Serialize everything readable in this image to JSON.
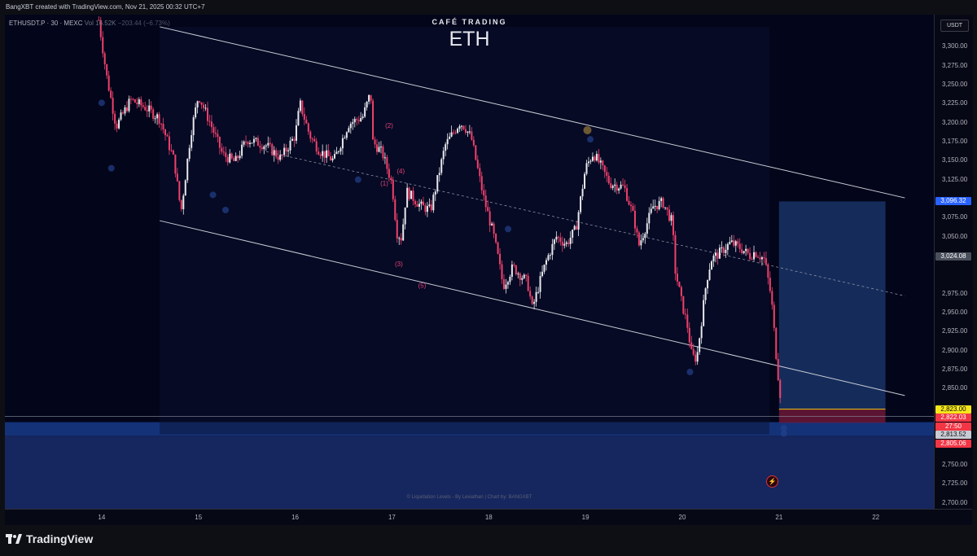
{
  "header": {
    "credit": "BangXBT created with TradingView.com, Nov 21, 2025 00:32 UTC+7"
  },
  "legend": {
    "symbol": "ETHUSDT.P · 30 · MEXC",
    "volume_label": "Vol",
    "volume_value": "16.52K",
    "change": "−203.44 (−6.73%)"
  },
  "brand": {
    "subtitle": "CAFÉ TRADING",
    "title": "ETH"
  },
  "watermark": "© Liquidation Levels - By Leviathan | Chart by: BANGXBT",
  "price_axis": {
    "unit": "USDT",
    "ticks": [
      "3,300.00",
      "3,275.00",
      "3,250.00",
      "3,225.00",
      "3,200.00",
      "3,175.00",
      "3,150.00",
      "3,125.00",
      "3,075.00",
      "3,050.00",
      "2,975.00",
      "2,950.00",
      "2,925.00",
      "2,900.00",
      "2,875.00",
      "2,850.00",
      "2,775.00",
      "2,750.00",
      "2,725.00",
      "2,700.00"
    ]
  },
  "tags": [
    {
      "text": "3,096.32",
      "color": "#2962ff",
      "price": 3096.32
    },
    {
      "text": "3,024.08",
      "color": "#4a4f5c",
      "price": 3024.08
    },
    {
      "text": "2,823.00",
      "color": "#f5e61a",
      "price": 2823.0,
      "dark": true
    },
    {
      "text": "2,822.03",
      "color": "#f23645",
      "price": 2822.03
    },
    {
      "text": "27:50",
      "color": "#f23645",
      "price": 2813.5
    },
    {
      "text": "2,813.52",
      "color": "#c8cbd4",
      "price": 2813.52,
      "dark": true
    },
    {
      "text": "2,805.06",
      "color": "#f23645",
      "price": 2805.06
    }
  ],
  "time_axis": [
    "14",
    "15",
    "16",
    "17",
    "18",
    "19",
    "20",
    "21",
    "22"
  ],
  "footer": {
    "logo_text": "TradingView"
  },
  "icons": {
    "flash": "lightning-icon"
  },
  "chart_data": {
    "type": "candlestick",
    "symbol": "ETHUSDT.P",
    "interval": "30",
    "exchange": "MEXC",
    "ylim": [
      2692,
      3342
    ],
    "x_range": [
      13.0,
      22.6
    ],
    "x_unit": "day (November 2025)",
    "close_path": [
      [
        13.97,
        3335
      ],
      [
        14.05,
        3262
      ],
      [
        14.15,
        3195
      ],
      [
        14.3,
        3230
      ],
      [
        14.45,
        3220
      ],
      [
        14.6,
        3205
      ],
      [
        14.75,
        3150
      ],
      [
        14.82,
        3082
      ],
      [
        14.92,
        3185
      ],
      [
        15.0,
        3236
      ],
      [
        15.12,
        3200
      ],
      [
        15.25,
        3158
      ],
      [
        15.38,
        3148
      ],
      [
        15.5,
        3178
      ],
      [
        15.7,
        3170
      ],
      [
        15.85,
        3153
      ],
      [
        16.0,
        3183
      ],
      [
        16.05,
        3225
      ],
      [
        16.15,
        3183
      ],
      [
        16.25,
        3163
      ],
      [
        16.4,
        3150
      ],
      [
        16.55,
        3198
      ],
      [
        16.7,
        3208
      ],
      [
        16.78,
        3240
      ],
      [
        16.8,
        3175
      ],
      [
        16.9,
        3160
      ],
      [
        17.0,
        3120
      ],
      [
        17.05,
        3055
      ],
      [
        17.1,
        3048
      ],
      [
        17.15,
        3110
      ],
      [
        17.3,
        3090
      ],
      [
        17.4,
        3085
      ],
      [
        17.55,
        3170
      ],
      [
        17.7,
        3200
      ],
      [
        17.75,
        3195
      ],
      [
        17.82,
        3180
      ],
      [
        17.9,
        3130
      ],
      [
        17.95,
        3100
      ],
      [
        18.05,
        3052
      ],
      [
        18.1,
        3020
      ],
      [
        18.15,
        2985
      ],
      [
        18.25,
        3010
      ],
      [
        18.4,
        2990
      ],
      [
        18.45,
        2955
      ],
      [
        18.55,
        3000
      ],
      [
        18.6,
        3020
      ],
      [
        18.7,
        3050
      ],
      [
        18.8,
        3040
      ],
      [
        18.9,
        3060
      ],
      [
        19.0,
        3140
      ],
      [
        19.08,
        3160
      ],
      [
        19.15,
        3145
      ],
      [
        19.25,
        3120
      ],
      [
        19.4,
        3115
      ],
      [
        19.5,
        3075
      ],
      [
        19.55,
        3038
      ],
      [
        19.6,
        3055
      ],
      [
        19.7,
        3090
      ],
      [
        19.8,
        3095
      ],
      [
        19.9,
        3068
      ],
      [
        19.92,
        3010
      ],
      [
        20.0,
        2960
      ],
      [
        20.05,
        2935
      ],
      [
        20.1,
        2892
      ],
      [
        20.15,
        2890
      ],
      [
        20.2,
        2940
      ],
      [
        20.25,
        2992
      ],
      [
        20.3,
        3020
      ],
      [
        20.4,
        3030
      ],
      [
        20.5,
        3042
      ],
      [
        20.6,
        3035
      ],
      [
        20.7,
        3025
      ],
      [
        20.75,
        3030
      ],
      [
        20.85,
        3020
      ],
      [
        20.92,
        2970
      ],
      [
        20.98,
        2880
      ],
      [
        21.03,
        2822
      ]
    ],
    "annotations": [
      {
        "text": "(2)",
        "x": 16.93,
        "y": 3193
      },
      {
        "text": "(4)",
        "x": 17.05,
        "y": 3133
      },
      {
        "text": "(1)",
        "x": 16.88,
        "y": 3117
      },
      {
        "text": "(3)",
        "x": 17.03,
        "y": 3011
      },
      {
        "text": "(5)",
        "x": 17.27,
        "y": 2983
      }
    ],
    "channel": {
      "upper": [
        [
          14.6,
          3326
        ],
        [
          22.3,
          3101
        ]
      ],
      "lower": [
        [
          14.6,
          3071
        ],
        [
          22.3,
          2841
        ]
      ],
      "mid": [
        [
          15.7,
          3162
        ],
        [
          22.3,
          2972
        ]
      ]
    },
    "zones": [
      {
        "name": "target",
        "x": [
          21.0,
          22.1
        ],
        "y": [
          2823,
          3096.32
        ],
        "color": "#1c3a72"
      },
      {
        "name": "stop",
        "x": [
          21.0,
          22.1
        ],
        "y": [
          2805.06,
          2823
        ],
        "color": "#7a1a3a"
      },
      {
        "name": "liquidation-strong",
        "y": [
          2788,
          2806
        ],
        "color": "#173b8a"
      },
      {
        "name": "liquidation-weak",
        "y": [
          2692,
          2788
        ],
        "color": "#1a2d6b"
      }
    ]
  }
}
